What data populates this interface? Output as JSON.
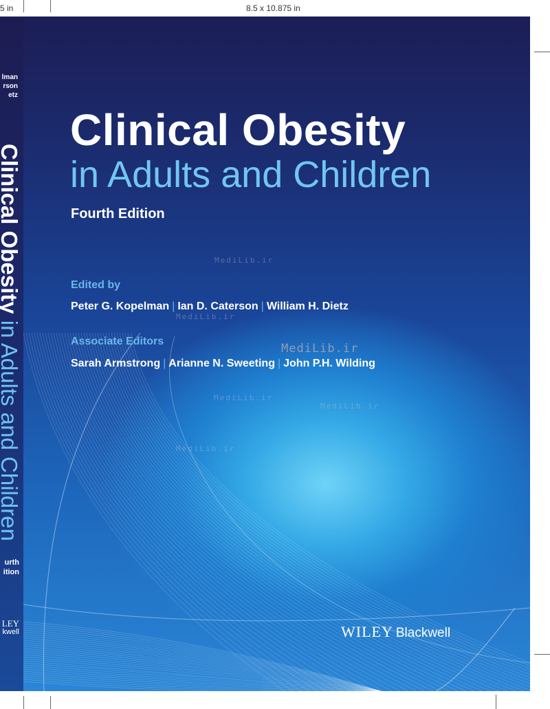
{
  "trim": {
    "left_label": "5 in",
    "center_label": "8.5 x 10.875 in"
  },
  "spine": {
    "authors": [
      "lman",
      "rson",
      "etz"
    ],
    "title_main": "Clinical Obesity",
    "title_sub": "in Adults and Children",
    "edition": [
      "urth",
      "ition"
    ],
    "publisher": [
      "LEY",
      "kwell"
    ]
  },
  "cover": {
    "title": "Clinical Obesity",
    "subtitle": "in Adults and Children",
    "edition": "Fourth Edition",
    "edited_by_label": "Edited by",
    "editors": [
      "Peter G. Kopelman",
      "Ian D. Caterson",
      "William H. Dietz"
    ],
    "associate_label": "Associate Editors",
    "associate_editors": [
      "Sarah Armstrong",
      "Arianne N. Sweeting",
      "John P.H. Wilding"
    ],
    "publisher_wiley": "WILEY",
    "publisher_imprint": "Blackwell",
    "separator": "|"
  },
  "watermark": "MediLib.ir",
  "colors": {
    "title": "#ffffff",
    "subtitle": "#72c6f1",
    "label": "#69b8ea",
    "background_dark": "#1c1d55",
    "background_light": "#6fd3f7"
  }
}
